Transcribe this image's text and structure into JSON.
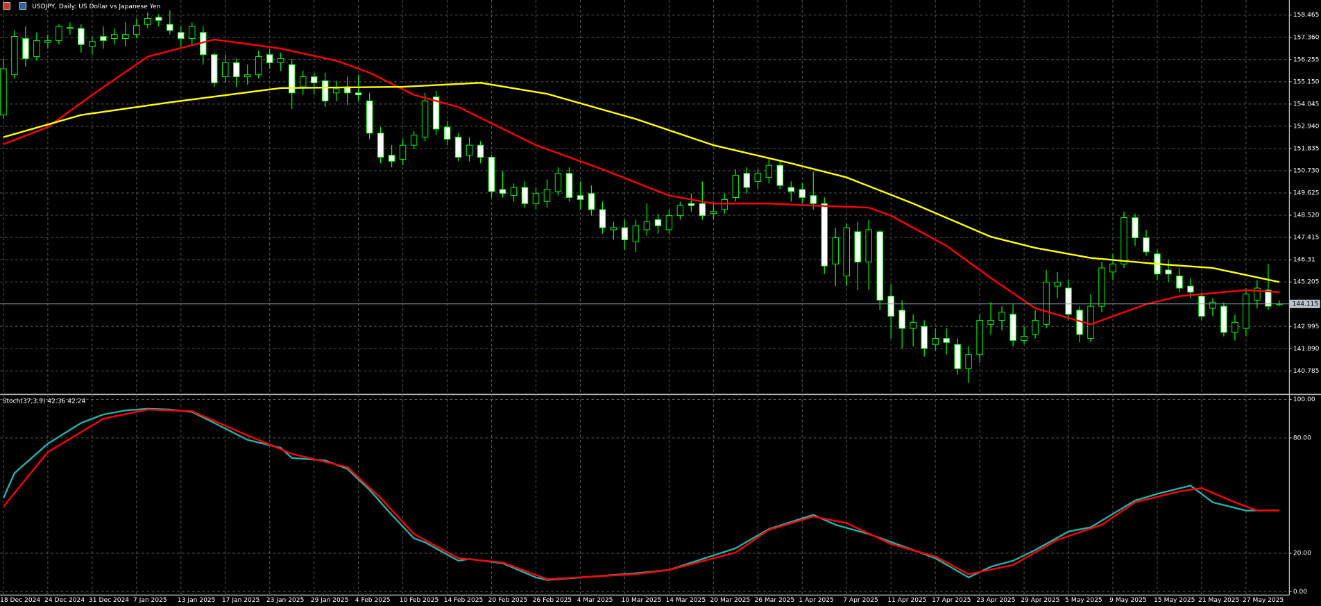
{
  "chart_data": [
    {
      "type": "candlestick",
      "title": "USDJPY, Daily:  US Dollar vs Japanese Yen",
      "categories": [
        "18 Dec 2024",
        null,
        null,
        null,
        "24 Dec 2024",
        null,
        null,
        null,
        "31 Dec 2024",
        null,
        null,
        null,
        "7 Jan 2025",
        null,
        null,
        null,
        "13 Jan 2025",
        null,
        null,
        null,
        "17 Jan 2025",
        null,
        null,
        null,
        "23 Jan 2025",
        null,
        null,
        null,
        "29 Jan 2025",
        null,
        null,
        null,
        "4 Feb 2025",
        null,
        null,
        null,
        "10 Feb 2025",
        null,
        null,
        null,
        "14 Feb 2025",
        null,
        null,
        null,
        "20 Feb 2025",
        null,
        null,
        null,
        "26 Feb 2025",
        null,
        null,
        null,
        "4 Mar 2025",
        null,
        null,
        null,
        "10 Mar 2025",
        null,
        null,
        null,
        "14 Mar 2025",
        null,
        null,
        null,
        "20 Mar 2025",
        null,
        null,
        null,
        "26 Mar 2025",
        null,
        null,
        null,
        "1 Apr 2025",
        null,
        null,
        null,
        "7 Apr 2025",
        null,
        null,
        null,
        "11 Apr 2025",
        null,
        null,
        null,
        "17 Apr 2025",
        null,
        null,
        null,
        "23 Apr 2025",
        null,
        null,
        null,
        "29 Apr 2025",
        null,
        null,
        null,
        "5 May 2025",
        null,
        null,
        null,
        "9 May 2025",
        null,
        null,
        null,
        "15 May 2025",
        null,
        null,
        null,
        "21 May 2025",
        null,
        null,
        null,
        "27 May 2025",
        null,
        null,
        null
      ],
      "open": [
        153.5,
        155.5,
        157.3,
        156.4,
        157.1,
        157.2,
        157.8,
        157.8,
        156.9,
        157.4,
        157.3,
        157.3,
        157.5,
        158.0,
        158.35,
        158.0,
        157.6,
        157.3,
        157.6,
        156.5,
        155.4,
        156.1,
        155.4,
        155.5,
        156.5,
        156.1,
        156.0,
        154.9,
        155.4,
        155.2,
        154.6,
        154.9,
        154.6,
        154.2,
        152.6,
        151.5,
        151.3,
        152.0,
        152.4,
        154.4,
        152.9,
        152.4,
        151.5,
        152.0,
        151.4,
        149.8,
        149.5,
        149.9,
        149.1,
        149.2,
        149.7,
        150.6,
        149.5,
        149.6,
        148.8,
        147.8,
        147.9,
        147.2,
        147.8,
        148.3,
        147.8,
        148.5,
        149.1,
        149.1,
        148.6,
        148.8,
        149.4,
        150.6,
        150.2,
        150.4,
        151.0,
        149.9,
        149.8,
        149.5,
        149.1,
        146.1,
        145.5,
        147.7,
        146.2,
        147.7,
        144.5,
        143.8,
        142.9,
        143.0,
        142.1,
        142.4,
        142.1,
        140.9,
        141.6,
        143.1,
        143.3,
        143.6,
        142.3,
        142.6,
        143.1,
        145.0,
        144.9,
        143.8,
        142.4,
        144.0,
        145.7,
        146.1,
        148.4,
        147.4,
        146.6,
        145.8,
        145.5,
        145.0,
        144.5,
        143.9,
        144.0,
        142.7,
        142.9,
        144.3,
        144.8,
        144.1
      ],
      "high": [
        156.3,
        157.7,
        157.9,
        157.6,
        157.5,
        158.0,
        158.1,
        158.0,
        157.4,
        157.9,
        157.8,
        158.1,
        158.3,
        158.6,
        158.5,
        158.7,
        157.9,
        158.1,
        157.9,
        156.6,
        156.5,
        156.3,
        156.0,
        156.7,
        156.8,
        156.6,
        156.3,
        155.7,
        155.6,
        155.6,
        155.2,
        155.4,
        155.5,
        154.6,
        152.9,
        152.0,
        152.3,
        152.7,
        154.6,
        154.7,
        153.2,
        152.6,
        152.4,
        152.2,
        151.5,
        150.7,
        150.1,
        150.2,
        149.9,
        150.3,
        150.9,
        150.9,
        150.2,
        150.0,
        149.2,
        148.2,
        148.3,
        148.3,
        149.1,
        148.6,
        148.8,
        149.2,
        149.6,
        150.2,
        149.2,
        149.6,
        150.8,
        150.9,
        150.8,
        151.3,
        151.2,
        150.2,
        150.1,
        150.7,
        149.4,
        147.9,
        148.1,
        148.2,
        148.3,
        147.8,
        145.1,
        144.3,
        143.6,
        143.3,
        142.9,
        142.9,
        142.4,
        142.0,
        143.6,
        144.2,
        144.0,
        144.1,
        143.0,
        143.8,
        145.8,
        145.7,
        145.3,
        144.0,
        144.6,
        146.2,
        146.6,
        148.7,
        148.6,
        147.8,
        146.8,
        146.3,
        145.9,
        145.4,
        144.7,
        144.4,
        144.2,
        143.6,
        144.9,
        145.3,
        146.1,
        144.3
      ],
      "low": [
        153.3,
        155.3,
        155.9,
        156.2,
        156.8,
        157.0,
        157.5,
        156.6,
        156.5,
        156.8,
        157.0,
        156.9,
        157.3,
        157.8,
        157.9,
        157.5,
        156.9,
        157.0,
        156.0,
        154.9,
        155.1,
        154.9,
        155.0,
        155.3,
        155.8,
        155.7,
        153.8,
        154.5,
        154.5,
        153.9,
        154.2,
        154.0,
        154.2,
        152.3,
        151.1,
        150.9,
        151.0,
        151.8,
        152.2,
        152.5,
        152.0,
        151.2,
        151.2,
        151.1,
        149.4,
        149.4,
        149.2,
        148.9,
        148.8,
        148.9,
        149.5,
        149.2,
        148.8,
        148.5,
        147.6,
        147.3,
        146.8,
        146.7,
        147.5,
        147.6,
        147.6,
        148.3,
        148.7,
        148.3,
        148.3,
        148.6,
        149.2,
        149.6,
        149.8,
        150.1,
        149.8,
        149.2,
        149.1,
        148.8,
        145.6,
        145.0,
        145.0,
        144.8,
        144.8,
        143.8,
        142.4,
        141.9,
        142.0,
        141.5,
        141.8,
        141.6,
        140.6,
        140.2,
        141.2,
        142.6,
        142.8,
        142.0,
        142.1,
        142.4,
        142.9,
        144.4,
        143.3,
        142.2,
        142.2,
        143.7,
        145.3,
        145.9,
        147.0,
        146.5,
        145.3,
        145.2,
        144.7,
        144.4,
        143.3,
        143.5,
        142.5,
        142.3,
        142.5,
        143.9,
        143.8,
        144.0
      ],
      "close": [
        155.8,
        157.4,
        156.3,
        157.2,
        157.2,
        157.9,
        157.85,
        157.0,
        157.15,
        157.2,
        157.5,
        157.5,
        157.95,
        158.3,
        158.2,
        157.7,
        157.3,
        157.9,
        156.5,
        155.1,
        156.1,
        155.4,
        155.5,
        156.4,
        156.1,
        156.3,
        154.6,
        155.4,
        155.1,
        154.2,
        154.8,
        154.6,
        154.5,
        152.6,
        151.4,
        151.2,
        152.0,
        152.5,
        154.2,
        152.8,
        152.3,
        151.4,
        152.0,
        151.4,
        149.7,
        149.6,
        149.9,
        149.1,
        149.6,
        149.8,
        150.6,
        149.4,
        149.3,
        148.8,
        147.9,
        147.9,
        147.3,
        148.0,
        148.2,
        148.0,
        148.5,
        149.0,
        149.0,
        148.5,
        148.7,
        149.3,
        150.5,
        149.9,
        150.6,
        151.0,
        150.0,
        149.7,
        149.4,
        149.1,
        146.0,
        147.4,
        147.9,
        146.2,
        147.8,
        144.3,
        143.5,
        142.9,
        143.2,
        141.9,
        142.4,
        142.2,
        140.9,
        141.6,
        143.3,
        143.3,
        143.7,
        142.3,
        142.5,
        143.3,
        145.2,
        145.2,
        143.6,
        142.6,
        144.0,
        145.9,
        146.1,
        148.4,
        147.4,
        146.7,
        145.6,
        145.6,
        144.9,
        144.7,
        143.5,
        144.2,
        142.7,
        143.2,
        144.6,
        144.9,
        144.0,
        144.115
      ],
      "bull_color": "#00ff00",
      "bear_color": "#ffffff",
      "overlays": [
        {
          "color": "#ff0000",
          "x": [
            0,
            4,
            8,
            13,
            19,
            25,
            30,
            33,
            37,
            41,
            48,
            54,
            60,
            64,
            69,
            73,
            78,
            80,
            85,
            89,
            93,
            98,
            99,
            103,
            106,
            110,
            112,
            115
          ],
          "values": [
            152.05,
            152.9,
            154.5,
            156.4,
            157.25,
            156.8,
            156.2,
            155.6,
            154.5,
            153.9,
            152.0,
            150.8,
            149.5,
            149.1,
            149.1,
            149.0,
            148.9,
            148.5,
            147.0,
            145.4,
            143.9,
            143.1,
            143.3,
            144.1,
            144.5,
            144.7,
            144.8,
            144.7
          ]
        },
        {
          "color": "#ffff00",
          "x": [
            0,
            7,
            15,
            25,
            36,
            43,
            49,
            57,
            64,
            71,
            76,
            82,
            89,
            93,
            98,
            104,
            109,
            115
          ],
          "values": [
            152.4,
            153.5,
            154.13,
            154.84,
            154.9,
            155.1,
            154.55,
            153.3,
            152.0,
            151.1,
            150.4,
            149.1,
            147.45,
            146.9,
            146.4,
            146.1,
            145.9,
            145.2
          ]
        }
      ],
      "ylim": [
        139.7,
        159.13
      ],
      "yticks": [
        140.785,
        {
          "value": 141.89,
          "label": "141.890"
        },
        142.995,
        145.205,
        146.31,
        147.415,
        {
          "value": 148.52,
          "label": "148.520"
        },
        149.625,
        {
          "value": 150.73,
          "label": "150.730"
        },
        151.835,
        {
          "value": 152.94,
          "label": "152.940"
        },
        154.045,
        {
          "value": 155.15,
          "label": "155.150"
        },
        156.255,
        {
          "value": 157.36,
          "label": "157.360"
        },
        158.465
      ],
      "grid": true
    },
    {
      "type": "line",
      "title": "Stoch(37,3,9) 42.36 42.24",
      "series": [
        {
          "color": "#20b2aa",
          "x": [
            0,
            1,
            4,
            7,
            9,
            11,
            13,
            15,
            17,
            19,
            22,
            25,
            26,
            29,
            31,
            33,
            35,
            37,
            38,
            41,
            42,
            45,
            48,
            49,
            53,
            57,
            60,
            63,
            66,
            69,
            73,
            75,
            78,
            82,
            84,
            87,
            89,
            91,
            93,
            96,
            98,
            102,
            104,
            107,
            109,
            112,
            115
          ],
          "values": [
            48.7,
            61.7,
            77,
            87.8,
            92.2,
            94.3,
            95.2,
            94.8,
            93.5,
            87.8,
            79,
            74.8,
            69.6,
            68.3,
            63.9,
            53,
            40,
            27.8,
            25.7,
            16.1,
            17,
            14.8,
            7.4,
            6.1,
            7.8,
            9.6,
            11.3,
            17,
            22.6,
            32.6,
            40,
            34.8,
            30,
            21.7,
            17.4,
            7.4,
            13,
            16.1,
            21.7,
            31.3,
            33.5,
            47.4,
            50.9,
            55.2,
            46.5,
            42.2,
            42.36
          ]
        },
        {
          "color": "#ff0000",
          "x": [
            0,
            4,
            9,
            13,
            17,
            22,
            26,
            31,
            34,
            37,
            41,
            45,
            49,
            57,
            60,
            66,
            69,
            73,
            76,
            80,
            84,
            87,
            91,
            95,
            99,
            102,
            106,
            108,
            111,
            113,
            115
          ],
          "values": [
            44.3,
            72.6,
            90,
            94.8,
            93.9,
            81.3,
            71.7,
            64.8,
            48.7,
            30,
            17.4,
            15.2,
            6.5,
            9.1,
            11.3,
            20.4,
            32.2,
            39.1,
            35.7,
            24.8,
            18.3,
            9.1,
            13.9,
            27,
            34.8,
            46.5,
            52.2,
            53.9,
            46.5,
            42.2,
            42.24
          ]
        }
      ],
      "ylim": [
        0,
        100
      ],
      "yticks": [
        {
          "value": 0,
          "label": "0.00"
        },
        {
          "value": 20,
          "label": "20.00"
        },
        {
          "value": 80,
          "label": "80.00"
        },
        {
          "value": 100,
          "label": "100.00"
        }
      ],
      "grid": true
    }
  ]
}
